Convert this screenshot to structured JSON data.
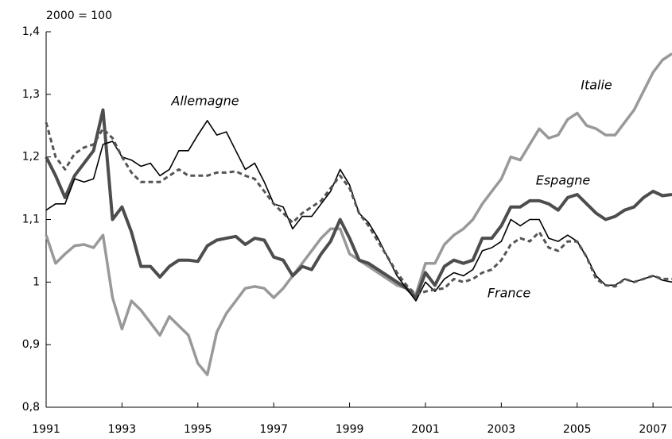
{
  "chart_data": {
    "type": "line",
    "y_label": "2000 = 100",
    "x": [
      1991,
      1991.25,
      1991.5,
      1991.75,
      1992,
      1992.25,
      1992.5,
      1992.75,
      1993,
      1993.25,
      1993.5,
      1993.75,
      1994,
      1994.25,
      1994.5,
      1994.75,
      1995,
      1995.25,
      1995.5,
      1995.75,
      1996,
      1996.25,
      1996.5,
      1996.75,
      1997,
      1997.25,
      1997.5,
      1997.75,
      1998,
      1998.25,
      1998.5,
      1998.75,
      1999,
      1999.25,
      1999.5,
      1999.75,
      2000,
      2000.25,
      2000.5,
      2000.75,
      2001,
      2001.25,
      2001.5,
      2001.75,
      2002,
      2002.25,
      2002.5,
      2002.75,
      2003,
      2003.25,
      2003.5,
      2003.75,
      2004,
      2004.25,
      2004.5,
      2004.75,
      2005,
      2005.25,
      2005.5,
      2005.75,
      2006,
      2006.25,
      2006.5,
      2006.75,
      2007,
      2007.25,
      2007.5
    ],
    "series": [
      {
        "name": "Italie",
        "color": "#999999",
        "style": "solid",
        "values": [
          1.075,
          1.03,
          1.045,
          1.058,
          1.06,
          1.055,
          1.075,
          0.975,
          0.925,
          0.97,
          0.955,
          0.935,
          0.915,
          0.945,
          0.93,
          0.915,
          0.87,
          0.852,
          0.92,
          0.95,
          0.97,
          0.99,
          0.993,
          0.99,
          0.975,
          0.99,
          1.01,
          1.03,
          1.05,
          1.07,
          1.085,
          1.085,
          1.045,
          1.035,
          1.025,
          1.015,
          1.005,
          0.995,
          0.99,
          0.98,
          1.03,
          1.03,
          1.06,
          1.075,
          1.085,
          1.1,
          1.125,
          1.145,
          1.165,
          1.2,
          1.195,
          1.22,
          1.245,
          1.23,
          1.235,
          1.26,
          1.27,
          1.25,
          1.245,
          1.235,
          1.235,
          1.255,
          1.275,
          1.305,
          1.335,
          1.355,
          1.365
        ]
      },
      {
        "name": "Espagne",
        "color": "#4d4d4d",
        "style": "solid",
        "values": [
          1.2,
          1.17,
          1.135,
          1.17,
          1.19,
          1.21,
          1.275,
          1.1,
          1.12,
          1.08,
          1.025,
          1.025,
          1.008,
          1.025,
          1.035,
          1.035,
          1.033,
          1.058,
          1.067,
          1.07,
          1.073,
          1.06,
          1.07,
          1.067,
          1.04,
          1.035,
          1.01,
          1.025,
          1.02,
          1.045,
          1.065,
          1.1,
          1.07,
          1.035,
          1.03,
          1.02,
          1.01,
          1.0,
          0.99,
          0.975,
          1.015,
          0.995,
          1.025,
          1.035,
          1.03,
          1.035,
          1.07,
          1.07,
          1.09,
          1.12,
          1.12,
          1.13,
          1.13,
          1.125,
          1.115,
          1.135,
          1.14,
          1.125,
          1.11,
          1.1,
          1.105,
          1.115,
          1.12,
          1.135,
          1.145,
          1.138,
          1.14
        ]
      },
      {
        "name": "Allemagne",
        "color": "#000000",
        "style": "solid",
        "values": [
          1.115,
          1.125,
          1.125,
          1.165,
          1.16,
          1.165,
          1.22,
          1.225,
          1.2,
          1.195,
          1.185,
          1.19,
          1.17,
          1.18,
          1.21,
          1.21,
          1.235,
          1.258,
          1.235,
          1.24,
          1.21,
          1.18,
          1.19,
          1.16,
          1.125,
          1.12,
          1.085,
          1.105,
          1.105,
          1.125,
          1.145,
          1.18,
          1.155,
          1.11,
          1.095,
          1.07,
          1.04,
          1.01,
          0.99,
          0.97,
          1.0,
          0.985,
          1.005,
          1.015,
          1.01,
          1.02,
          1.05,
          1.055,
          1.065,
          1.1,
          1.09,
          1.1,
          1.1,
          1.07,
          1.065,
          1.075,
          1.065,
          1.04,
          1.01,
          0.995,
          0.995,
          1.005,
          1.0,
          1.005,
          1.01,
          1.003,
          1.0
        ]
      },
      {
        "name": "France",
        "color": "#555555",
        "style": "dashed",
        "values": [
          1.255,
          1.2,
          1.18,
          1.205,
          1.215,
          1.22,
          1.245,
          1.23,
          1.2,
          1.175,
          1.16,
          1.16,
          1.16,
          1.17,
          1.18,
          1.17,
          1.17,
          1.17,
          1.175,
          1.175,
          1.177,
          1.17,
          1.165,
          1.145,
          1.125,
          1.11,
          1.095,
          1.11,
          1.12,
          1.13,
          1.15,
          1.17,
          1.15,
          1.11,
          1.09,
          1.065,
          1.04,
          1.015,
          0.995,
          0.98,
          0.985,
          0.988,
          0.99,
          1.005,
          1.0,
          1.005,
          1.015,
          1.02,
          1.035,
          1.06,
          1.07,
          1.065,
          1.08,
          1.055,
          1.05,
          1.065,
          1.065,
          1.04,
          1.005,
          0.995,
          0.993,
          1.005,
          1.0,
          1.005,
          1.01,
          1.005,
          1.005
        ]
      }
    ],
    "xlim": [
      1991,
      2007.5
    ],
    "xticks": [
      1991,
      1993,
      1995,
      1997,
      1999,
      2001,
      2003,
      2005,
      2007
    ],
    "ylim": [
      0.8,
      1.4
    ],
    "yticks": [
      {
        "value": 0.8,
        "label": "0,8"
      },
      {
        "value": 0.9,
        "label": "0,9"
      },
      1,
      {
        "value": 1.1,
        "label": "1,1"
      },
      {
        "value": 1.2,
        "label": "1,2"
      },
      {
        "value": 1.3,
        "label": "1,3"
      },
      {
        "value": 1.4,
        "label": "1,4"
      }
    ],
    "grid": false
  }
}
